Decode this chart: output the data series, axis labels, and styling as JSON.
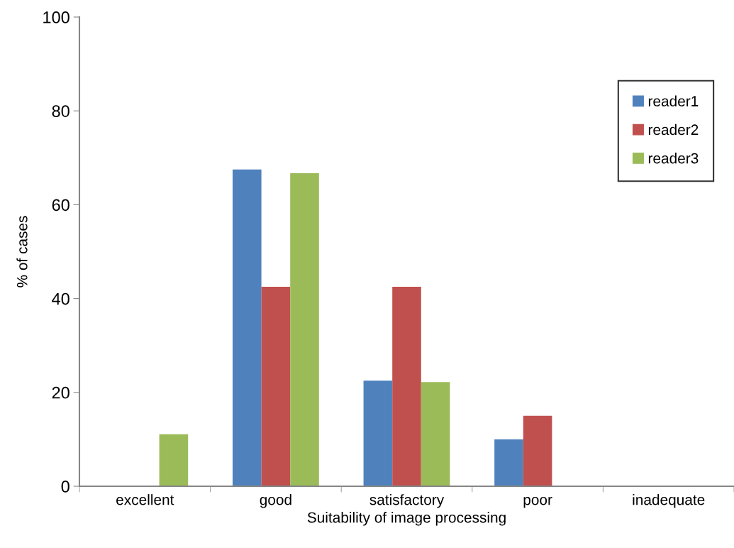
{
  "chart_data": {
    "type": "bar",
    "xlabel": "Suitability of image processing",
    "ylabel": "% of cases",
    "categories": [
      "excellent",
      "good",
      "satisfactory",
      "poor",
      "inadequate"
    ],
    "series": [
      {
        "name": "reader1",
        "color": "#4f81bd",
        "values": [
          0,
          67.5,
          22.5,
          10,
          0
        ]
      },
      {
        "name": "reader2",
        "color": "#c0504d",
        "values": [
          0,
          42.5,
          42.5,
          15,
          0
        ]
      },
      {
        "name": "reader3",
        "color": "#9bbb59",
        "values": [
          11.1,
          66.7,
          22.2,
          0,
          0
        ]
      }
    ],
    "ylim": [
      0,
      100
    ],
    "yticks": [
      0,
      20,
      40,
      60,
      80,
      100
    ],
    "grid": false,
    "legend": "top right"
  }
}
